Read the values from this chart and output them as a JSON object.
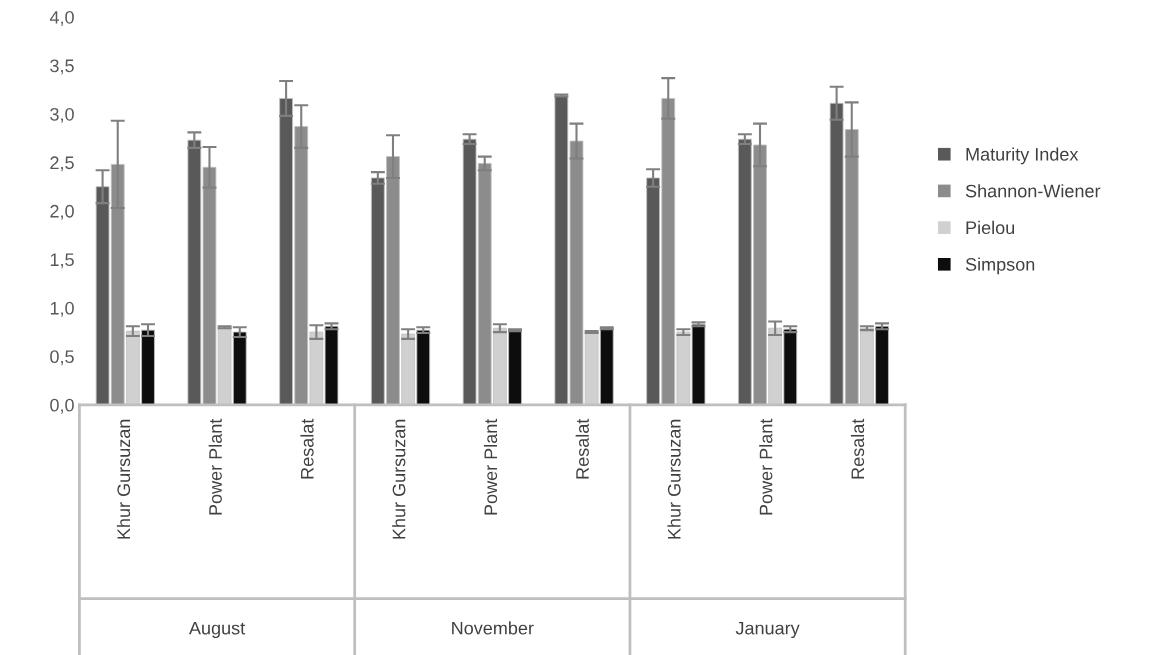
{
  "chart_data": {
    "type": "bar",
    "categories": [
      "Khur Gursuzan",
      "Power Plant",
      "Resalat",
      "Khur Gursuzan",
      "Power Plant",
      "Resalat",
      "Khur Gursuzan",
      "Power Plant",
      "Resalat"
    ],
    "annotations": [
      "August",
      "November",
      "January"
    ],
    "series": [
      {
        "name": "Maturity Index",
        "color": "#595959",
        "values": [
          2.25,
          2.73,
          3.16,
          2.34,
          2.74,
          3.19,
          2.34,
          2.74,
          3.11
        ],
        "errors": [
          0.17,
          0.08,
          0.18,
          0.06,
          0.05,
          0.01,
          0.09,
          0.05,
          0.17
        ]
      },
      {
        "name": "Shannon-Wiener",
        "color": "#8c8c8c",
        "values": [
          2.48,
          2.45,
          2.87,
          2.56,
          2.49,
          2.72,
          3.16,
          2.68,
          2.84
        ],
        "errors": [
          0.45,
          0.21,
          0.22,
          0.22,
          0.07,
          0.18,
          0.21,
          0.22,
          0.28
        ]
      },
      {
        "name": "Pielou",
        "color": "#d0d0d0",
        "values": [
          0.76,
          0.8,
          0.75,
          0.73,
          0.79,
          0.75,
          0.75,
          0.79,
          0.79
        ],
        "errors": [
          0.05,
          0.01,
          0.07,
          0.05,
          0.04,
          0.01,
          0.03,
          0.07,
          0.02
        ]
      },
      {
        "name": "Simpson",
        "color": "#0d0d0d",
        "values": [
          0.77,
          0.75,
          0.81,
          0.77,
          0.77,
          0.79,
          0.83,
          0.78,
          0.81
        ],
        "errors": [
          0.06,
          0.05,
          0.03,
          0.03,
          0.01,
          0.01,
          0.02,
          0.03,
          0.03
        ]
      }
    ],
    "ylim": [
      0,
      4
    ],
    "yticks": [
      {
        "value": 0,
        "label": "0,0"
      },
      {
        "value": 0.5,
        "label": "0,5"
      },
      {
        "value": 1,
        "label": "1,0"
      },
      {
        "value": 1.5,
        "label": "1,5"
      },
      {
        "value": 2,
        "label": "2,0"
      },
      {
        "value": 2.5,
        "label": "2,5"
      },
      {
        "value": 3,
        "label": "3,0"
      },
      {
        "value": 3.5,
        "label": "3,5"
      },
      {
        "value": 4,
        "label": "4,0"
      }
    ],
    "grid": false,
    "legend": "right"
  }
}
